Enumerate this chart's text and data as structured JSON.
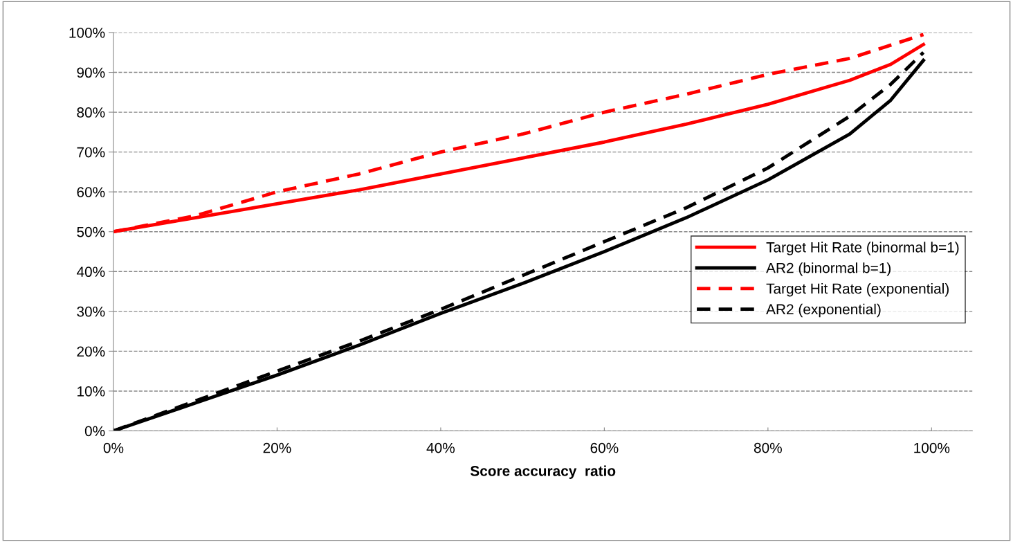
{
  "chart_data": {
    "type": "line",
    "xlabel": "Score accuracy  ratio",
    "xlim": [
      0,
      105
    ],
    "ylim": [
      0,
      100
    ],
    "xticks": [
      {
        "value": 0,
        "label": "0%"
      },
      {
        "value": 20,
        "label": "20%"
      },
      {
        "value": 40,
        "label": "40%"
      },
      {
        "value": 60,
        "label": "60%"
      },
      {
        "value": 80,
        "label": "80%"
      },
      {
        "value": 100,
        "label": "100%"
      }
    ],
    "yticks": [
      {
        "value": 0,
        "label": "0%"
      },
      {
        "value": 10,
        "label": "10%"
      },
      {
        "value": 20,
        "label": "20%"
      },
      {
        "value": 30,
        "label": "30%"
      },
      {
        "value": 40,
        "label": "40%"
      },
      {
        "value": 50,
        "label": "50%"
      },
      {
        "value": 60,
        "label": "60%"
      },
      {
        "value": 70,
        "label": "70%"
      },
      {
        "value": 80,
        "label": "80%"
      },
      {
        "value": 90,
        "label": "90%"
      },
      {
        "value": 100,
        "label": "100%"
      }
    ],
    "grid": "y",
    "legend": "right",
    "marker": "none",
    "series": [
      {
        "name": "Target Hit Rate (binormal b=1)",
        "color": "#ff0000",
        "line_style": "solid",
        "x": [
          0,
          10,
          20,
          30,
          40,
          50,
          60,
          70,
          80,
          90,
          95,
          99
        ],
        "values": [
          50,
          53.5,
          57,
          60.5,
          64.5,
          68.5,
          72.5,
          77,
          82,
          88,
          92,
          97
        ]
      },
      {
        "name": "AR2 (binormal b=1)",
        "color": "#000000",
        "line_style": "solid",
        "x": [
          0,
          10,
          20,
          30,
          40,
          50,
          60,
          70,
          80,
          90,
          95,
          99
        ],
        "values": [
          0,
          7,
          14,
          21.5,
          29.5,
          37,
          45,
          53.5,
          63,
          74.5,
          83,
          93
        ]
      },
      {
        "name": "Target Hit Rate (exponential)",
        "color": "#ff0000",
        "line_style": "dashed",
        "x": [
          0,
          10,
          20,
          30,
          40,
          50,
          60,
          70,
          80,
          90,
          99
        ],
        "values": [
          50,
          54,
          60,
          64.5,
          70,
          74.5,
          80,
          84.5,
          89.5,
          93.5,
          99.5
        ]
      },
      {
        "name": "AR2 (exponential)",
        "color": "#000000",
        "line_style": "dashed",
        "x": [
          0,
          10,
          20,
          30,
          40,
          50,
          60,
          70,
          80,
          90,
          95,
          99
        ],
        "values": [
          0,
          7.5,
          15,
          22.5,
          30.5,
          39,
          47.5,
          56,
          66,
          79,
          87,
          95
        ]
      }
    ]
  }
}
